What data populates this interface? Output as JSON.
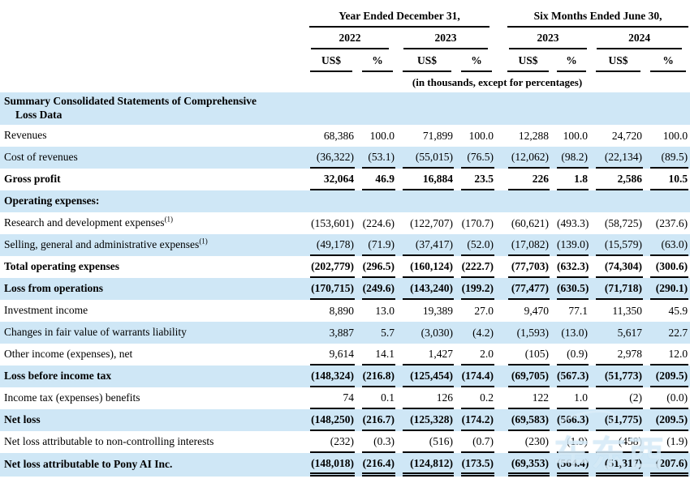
{
  "table": {
    "col_groups": [
      {
        "label": "Year Ended December 31,",
        "years": [
          "2022",
          "2023"
        ]
      },
      {
        "label": "Six Months Ended June 30,",
        "years": [
          "2023",
          "2024"
        ]
      }
    ],
    "units": [
      "US$",
      "%"
    ],
    "note": "(in thousands, except for percentages)",
    "rows": [
      {
        "lines": [
          "Summary Consolidated Statements of Comprehensive",
          "Loss Data"
        ],
        "bold": true,
        "tall": true,
        "values": []
      },
      {
        "label": "Revenues",
        "values": [
          "68,386",
          "100.0",
          "71,899",
          "100.0",
          "12,288",
          "100.0",
          "24,720",
          "100.0"
        ]
      },
      {
        "label": "Cost of revenues",
        "rule": "single",
        "values": [
          "(36,322)",
          "(53.1)",
          "(55,015)",
          "(76.5)",
          "(12,062)",
          "(98.2)",
          "(22,134)",
          "(89.5)"
        ]
      },
      {
        "label": "Gross profit",
        "bold": true,
        "rule": "single",
        "values": [
          "32,064",
          "46.9",
          "16,884",
          "23.5",
          "226",
          "1.8",
          "2,586",
          "10.5"
        ]
      },
      {
        "label": "Operating expenses:",
        "bold": true,
        "values": []
      },
      {
        "label": "Research and development expenses",
        "sup": "(1)",
        "values": [
          "(153,601)",
          "(224.6)",
          "(122,707)",
          "(170.7)",
          "(60,621)",
          "(493.3)",
          "(58,725)",
          "(237.6)"
        ]
      },
      {
        "label": "Selling, general and administrative expenses",
        "sup": "(1)",
        "rule": "single",
        "values": [
          "(49,178)",
          "(71.9)",
          "(37,417)",
          "(52.0)",
          "(17,082)",
          "(139.0)",
          "(15,579)",
          "(63.0)"
        ]
      },
      {
        "label": "Total operating expenses",
        "bold": true,
        "rule": "single",
        "values": [
          "(202,779)",
          "(296.5)",
          "(160,124)",
          "(222.7)",
          "(77,703)",
          "(632.3)",
          "(74,304)",
          "(300.6)"
        ]
      },
      {
        "label": "Loss from operations",
        "bold": true,
        "rule": "single",
        "values": [
          "(170,715)",
          "(249.6)",
          "(143,240)",
          "(199.2)",
          "(77,477)",
          "(630.5)",
          "(71,718)",
          "(290.1)"
        ]
      },
      {
        "label": "Investment income",
        "values": [
          "8,890",
          "13.0",
          "19,389",
          "27.0",
          "9,470",
          "77.1",
          "11,350",
          "45.9"
        ]
      },
      {
        "label": "Changes in fair value of warrants liability",
        "values": [
          "3,887",
          "5.7",
          "(3,030)",
          "(4.2)",
          "(1,593)",
          "(13.0)",
          "5,617",
          "22.7"
        ]
      },
      {
        "label": "Other income (expenses), net",
        "rule": "single",
        "values": [
          "9,614",
          "14.1",
          "1,427",
          "2.0",
          "(105)",
          "(0.9)",
          "2,978",
          "12.0"
        ]
      },
      {
        "label": "Loss before income tax",
        "bold": true,
        "rule": "single",
        "values": [
          "(148,324)",
          "(216.8)",
          "(125,454)",
          "(174.4)",
          "(69,705)",
          "(567.3)",
          "(51,773)",
          "(209.5)"
        ]
      },
      {
        "label": "Income tax (expenses) benefits",
        "rule": "single",
        "values": [
          "74",
          "0.1",
          "126",
          "0.2",
          "122",
          "1.0",
          "(2)",
          "(0.0)"
        ]
      },
      {
        "label": "Net loss",
        "bold": true,
        "rule": "single",
        "values": [
          "(148,250)",
          "(216.7)",
          "(125,328)",
          "(174.2)",
          "(69,583)",
          "(566.3)",
          "(51,775)",
          "(209.5)"
        ]
      },
      {
        "label": "Net loss attributable to non-controlling interests",
        "rule": "single",
        "values": [
          "(232)",
          "(0.3)",
          "(516)",
          "(0.7)",
          "(230)",
          "(1.9)",
          "(458)",
          "(1.9)"
        ]
      },
      {
        "label": "Net loss attributable to Pony AI Inc.",
        "bold": true,
        "rule": "double",
        "values": [
          "(148,018)",
          "(216.4)",
          "(124,812)",
          "(173.5)",
          "(69,353)",
          "(564.4)",
          "(51,317)",
          "(207.6)"
        ]
      }
    ]
  },
  "watermark": {
    "text": "车东西"
  },
  "colors": {
    "row_shade": "#cfe7f6",
    "rule": "#000000",
    "text": "#000000",
    "watermark": "#e0f0fa"
  }
}
